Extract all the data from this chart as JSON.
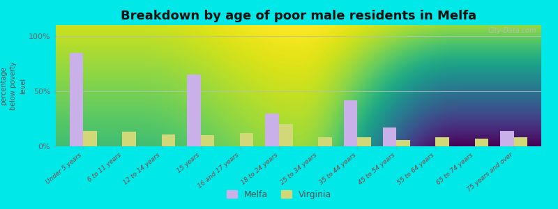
{
  "title": "Breakdown by age of poor male residents in Melfa",
  "ylabel": "percentage\nbelow poverty\nlevel",
  "categories": [
    "Under 5 years",
    "6 to 11 years",
    "12 to 14 years",
    "15 years",
    "16 and 17 years",
    "18 to 24 years",
    "25 to 34 years",
    "35 to 44 years",
    "45 to 54 years",
    "55 to 64 years",
    "65 to 74 years",
    "75 years and over"
  ],
  "melfa_values": [
    85,
    0,
    0,
    65,
    0,
    30,
    0,
    42,
    17,
    0,
    0,
    14
  ],
  "virginia_values": [
    14,
    13,
    11,
    10,
    12,
    20,
    8,
    8,
    6,
    8,
    7,
    8
  ],
  "melfa_color": "#c9b0e8",
  "virginia_color": "#d0d878",
  "background_top": "#f0f8e8",
  "background_bottom": "#d8e890",
  "outer_background": "#00e8e8",
  "yticks": [
    0,
    50,
    100
  ],
  "ytick_labels": [
    "0%",
    "50%",
    "100%"
  ],
  "ylim": [
    0,
    110
  ],
  "bar_width": 0.35,
  "title_fontsize": 13,
  "legend_labels": [
    "Melfa",
    "Virginia"
  ],
  "watermark": "City-Data.com"
}
